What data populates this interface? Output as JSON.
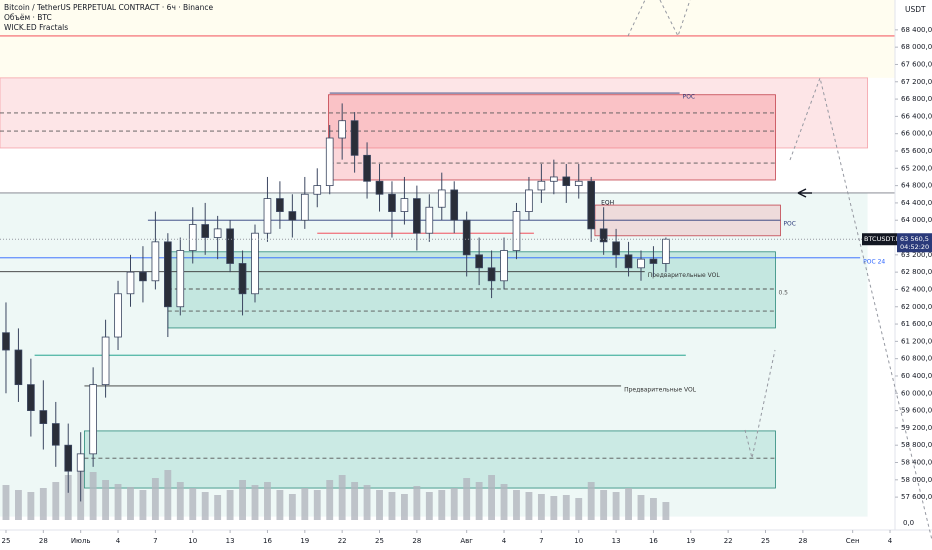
{
  "chart_data": {
    "type": "candlestick",
    "legend": [
      "Bitcoin / TetherUS PERPETUAL CONTRACT · 6ч · Binance",
      "Объём · BTC",
      "WICK.ED Fractals"
    ],
    "currency": "USDT",
    "symbol": "BTCUSDT.P",
    "last": {
      "value": 63560.5,
      "label": "63 560,5"
    },
    "countdown": "04:52:20",
    "up_color": "#ffffff",
    "down_color": "#2a2e39",
    "wick_color": "#3b4660",
    "volume_color": "#b2b5be",
    "x": [
      0,
      1,
      2,
      3,
      4,
      5,
      6,
      7,
      8,
      9,
      10,
      11,
      12,
      13,
      14,
      15,
      16,
      17,
      18,
      19,
      20,
      21,
      22,
      23,
      24,
      25,
      26,
      27,
      28,
      29,
      30,
      31,
      32,
      33,
      34,
      35,
      36,
      37,
      38,
      39,
      40,
      41,
      42,
      43,
      44,
      45,
      46,
      47,
      48,
      49,
      50,
      51,
      52,
      53
    ],
    "open": [
      61400,
      61000,
      60200,
      59600,
      59300,
      58800,
      58200,
      58600,
      60200,
      61300,
      62300,
      62800,
      62600,
      63500,
      62000,
      63300,
      63900,
      63600,
      63800,
      63000,
      62300,
      63700,
      64500,
      64200,
      64000,
      64600,
      64800,
      65900,
      66300,
      65500,
      64900,
      64600,
      64200,
      64500,
      63700,
      64300,
      64700,
      64000,
      63200,
      62900,
      62600,
      63300,
      64200,
      64700,
      64900,
      65000,
      64800,
      64900,
      63800,
      63500,
      63200,
      62900,
      63100,
      63000
    ],
    "high": [
      62100,
      61500,
      60800,
      60300,
      59800,
      59300,
      59100,
      60600,
      61700,
      62600,
      63200,
      63400,
      64200,
      63700,
      63600,
      64300,
      64400,
      64100,
      64000,
      63300,
      63900,
      65000,
      64900,
      64600,
      65000,
      65200,
      66200,
      66700,
      66500,
      65800,
      65300,
      64900,
      65000,
      64800,
      64600,
      65100,
      64900,
      64200,
      63600,
      63300,
      63600,
      64400,
      65000,
      65300,
      65400,
      65300,
      65300,
      65000,
      64300,
      63800,
      63500,
      63300,
      63400,
      63600
    ],
    "low": [
      60000,
      59800,
      59000,
      58700,
      58300,
      57700,
      57500,
      58300,
      59900,
      61000,
      62000,
      62100,
      62400,
      61300,
      61800,
      63000,
      63200,
      63100,
      62800,
      61800,
      62100,
      63500,
      63800,
      63600,
      63800,
      64300,
      64600,
      65400,
      65100,
      64500,
      64200,
      63600,
      63900,
      63300,
      63500,
      64000,
      63700,
      62700,
      62500,
      62200,
      62400,
      63100,
      64000,
      64400,
      64600,
      64400,
      64500,
      63500,
      63200,
      62900,
      62700,
      62600,
      62700,
      62800
    ],
    "close": [
      61000,
      60200,
      59600,
      59300,
      58800,
      58200,
      58600,
      60200,
      61300,
      62300,
      62800,
      62600,
      63500,
      62000,
      63300,
      63900,
      63600,
      63800,
      63000,
      62300,
      63700,
      64500,
      64200,
      64000,
      64600,
      64800,
      65900,
      66300,
      65500,
      64900,
      64600,
      64200,
      64500,
      63700,
      64300,
      64700,
      64000,
      63200,
      62900,
      62600,
      63300,
      64200,
      64700,
      64900,
      65000,
      64800,
      64900,
      63800,
      63500,
      63200,
      62900,
      63100,
      63000,
      63560.5
    ],
    "volume": [
      35,
      30,
      28,
      32,
      38,
      45,
      55,
      48,
      40,
      36,
      33,
      30,
      42,
      50,
      38,
      32,
      28,
      25,
      30,
      40,
      35,
      38,
      30,
      26,
      32,
      30,
      40,
      45,
      38,
      35,
      30,
      28,
      26,
      34,
      28,
      30,
      32,
      42,
      38,
      45,
      36,
      30,
      28,
      26,
      24,
      25,
      22,
      38,
      30,
      28,
      32,
      25,
      22,
      18
    ],
    "xlim": [
      -0.48,
      71.4
    ],
    "xticks": [
      {
        "value": 0,
        "label": "25"
      },
      {
        "value": 3,
        "label": "28"
      },
      {
        "value": 6,
        "label": "Июль"
      },
      {
        "value": 9,
        "label": "4"
      },
      {
        "value": 12,
        "label": "7"
      },
      {
        "value": 15,
        "label": "10"
      },
      {
        "value": 18,
        "label": "13"
      },
      {
        "value": 21,
        "label": "16"
      },
      {
        "value": 24,
        "label": "19"
      },
      {
        "value": 27,
        "label": "22"
      },
      {
        "value": 30,
        "label": "25"
      },
      {
        "value": 33,
        "label": "28"
      },
      {
        "value": 37,
        "label": "Авг"
      },
      {
        "value": 40,
        "label": "4"
      },
      {
        "value": 43,
        "label": "7"
      },
      {
        "value": 46,
        "label": "10"
      },
      {
        "value": 49,
        "label": "13"
      },
      {
        "value": 52,
        "label": "16"
      },
      {
        "value": 55,
        "label": "19"
      },
      {
        "value": 58,
        "label": "22"
      },
      {
        "value": 61,
        "label": "25"
      },
      {
        "value": 64,
        "label": "28"
      },
      {
        "value": 68,
        "label": "Сен"
      },
      {
        "value": 71,
        "label": "4"
      }
    ],
    "ylim": [
      56840,
      69090
    ],
    "yticks": [
      {
        "value": 68400,
        "label": "68 400,0"
      },
      {
        "value": 68000,
        "label": "68 000,0"
      },
      {
        "value": 67600,
        "label": "67 600,0"
      },
      {
        "value": 67200,
        "label": "67 200,0"
      },
      {
        "value": 66800,
        "label": "66 800,0"
      },
      {
        "value": 66400,
        "label": "66 400,0"
      },
      {
        "value": 66000,
        "label": "66 000,0"
      },
      {
        "value": 65600,
        "label": "65 600,0"
      },
      {
        "value": 65200,
        "label": "65 200,0"
      },
      {
        "value": 64800,
        "label": "64 800,0"
      },
      {
        "value": 64400,
        "label": "64 400,0"
      },
      {
        "value": 64000,
        "label": "64 000,0"
      },
      {
        "value": 63200,
        "label": "63 200,0"
      },
      {
        "value": 62800,
        "label": "62 800,0"
      },
      {
        "value": 62400,
        "label": "62 400,0"
      },
      {
        "value": 62000,
        "label": "62 000,0"
      },
      {
        "value": 61600,
        "label": "61 600,0"
      },
      {
        "value": 61200,
        "label": "61 200,0"
      },
      {
        "value": 60800,
        "label": "60 800,0"
      },
      {
        "value": 60400,
        "label": "60 400,0"
      },
      {
        "value": 60000,
        "label": "60 000,0"
      },
      {
        "value": 59600,
        "label": "59 600,0"
      },
      {
        "value": 59200,
        "label": "59 200,0"
      },
      {
        "value": 58800,
        "label": "58 800,0"
      },
      {
        "value": 58400,
        "label": "58 400,0"
      },
      {
        "value": 58000,
        "label": "58 000,0"
      },
      {
        "value": 57600,
        "label": "57 600,0"
      }
    ],
    "y2lim": [
      0,
      100
    ],
    "y2ticks": [
      {
        "value": 0,
        "label": "0,0"
      }
    ],
    "zones": [
      {
        "top": 69090,
        "bottom": 67290,
        "x": [
          -0.48,
          71.4
        ],
        "fill": "rgba(255,235,59,0.08)",
        "stroke": "none"
      },
      {
        "top": 64630,
        "bottom": 57150,
        "x": [
          -0.48,
          69.2
        ],
        "fill": "rgba(8,153,129,0.07)",
        "stroke": "none"
      },
      {
        "top": 67290,
        "bottom": 65670,
        "x": [
          -0.48,
          69.2
        ],
        "fill": "rgba(242,54,69,0.13)",
        "stroke": "#f5a3aa"
      },
      {
        "top": 66900,
        "bottom": 64930,
        "x": [
          25.9,
          61.8
        ],
        "fill": "rgba(242,54,69,0.2)",
        "stroke": "#c2424d"
      },
      {
        "top": 64350,
        "bottom": 63640,
        "x": [
          47.3,
          62.2
        ],
        "fill": "rgba(242,54,69,0.15)",
        "stroke": "#c2424d"
      },
      {
        "top": 63270,
        "bottom": 61510,
        "x": [
          13,
          61.8
        ],
        "fill": "rgba(8,153,129,0.18)",
        "stroke": "#2a8a7a"
      },
      {
        "top": 59130,
        "bottom": 57810,
        "x": [
          6.3,
          61.8
        ],
        "fill": "rgba(8,153,129,0.15)",
        "stroke": "#2a8a7a"
      }
    ],
    "levels": [
      {
        "price": 68260,
        "x": [
          -0.48,
          71.4
        ],
        "color": "#f23645",
        "dashed": false
      },
      {
        "price": 64630,
        "x": [
          -0.48,
          71.4
        ],
        "color": "#787b86",
        "dashed": false
      },
      {
        "price": 66940,
        "x": [
          26,
          54.1
        ],
        "color": "#2a3a7a",
        "dashed": false,
        "label": "POC"
      },
      {
        "price": 64000,
        "x": [
          11.4,
          62.2
        ],
        "color": "#2a3a7a",
        "dashed": false,
        "label": "POC"
      },
      {
        "price": 63130,
        "x": [
          -0.48,
          68.6
        ],
        "color": "#2962ff",
        "dashed": false,
        "label": "POC 24"
      },
      {
        "price": 62810,
        "x": [
          -0.48,
          51.3
        ],
        "color": "#333333",
        "dashed": false,
        "label": "Предварительные VOL"
      },
      {
        "price": 60880,
        "x": [
          2.3,
          54.6
        ],
        "color": "#089981",
        "dashed": false
      },
      {
        "price": 60170,
        "x": [
          6.3,
          49.4
        ],
        "color": "#333333",
        "dashed": false,
        "label": "Предварительные VOL"
      },
      {
        "price": 63700,
        "x": [
          25,
          42.4
        ],
        "color": "#f23645",
        "dashed": false
      },
      {
        "price": 66480,
        "x": [
          -0.48,
          61.8
        ],
        "color": "#555555",
        "dashed": true
      },
      {
        "price": 66060,
        "x": [
          -0.48,
          61.8
        ],
        "color": "#555555",
        "dashed": true
      },
      {
        "price": 65320,
        "x": [
          26,
          61.8
        ],
        "color": "#555555",
        "dashed": true
      },
      {
        "price": 62410,
        "x": [
          13,
          61.8
        ],
        "color": "#555555",
        "dashed": true,
        "label": "0.5"
      },
      {
        "price": 61900,
        "x": [
          13,
          61.8
        ],
        "color": "#555555",
        "dashed": true
      },
      {
        "price": 58500,
        "x": [
          6.3,
          61.8
        ],
        "color": "#555555",
        "dashed": true
      }
    ],
    "notes": [
      {
        "text": "EQH",
        "x": 47.8,
        "price": 64400
      }
    ]
  }
}
